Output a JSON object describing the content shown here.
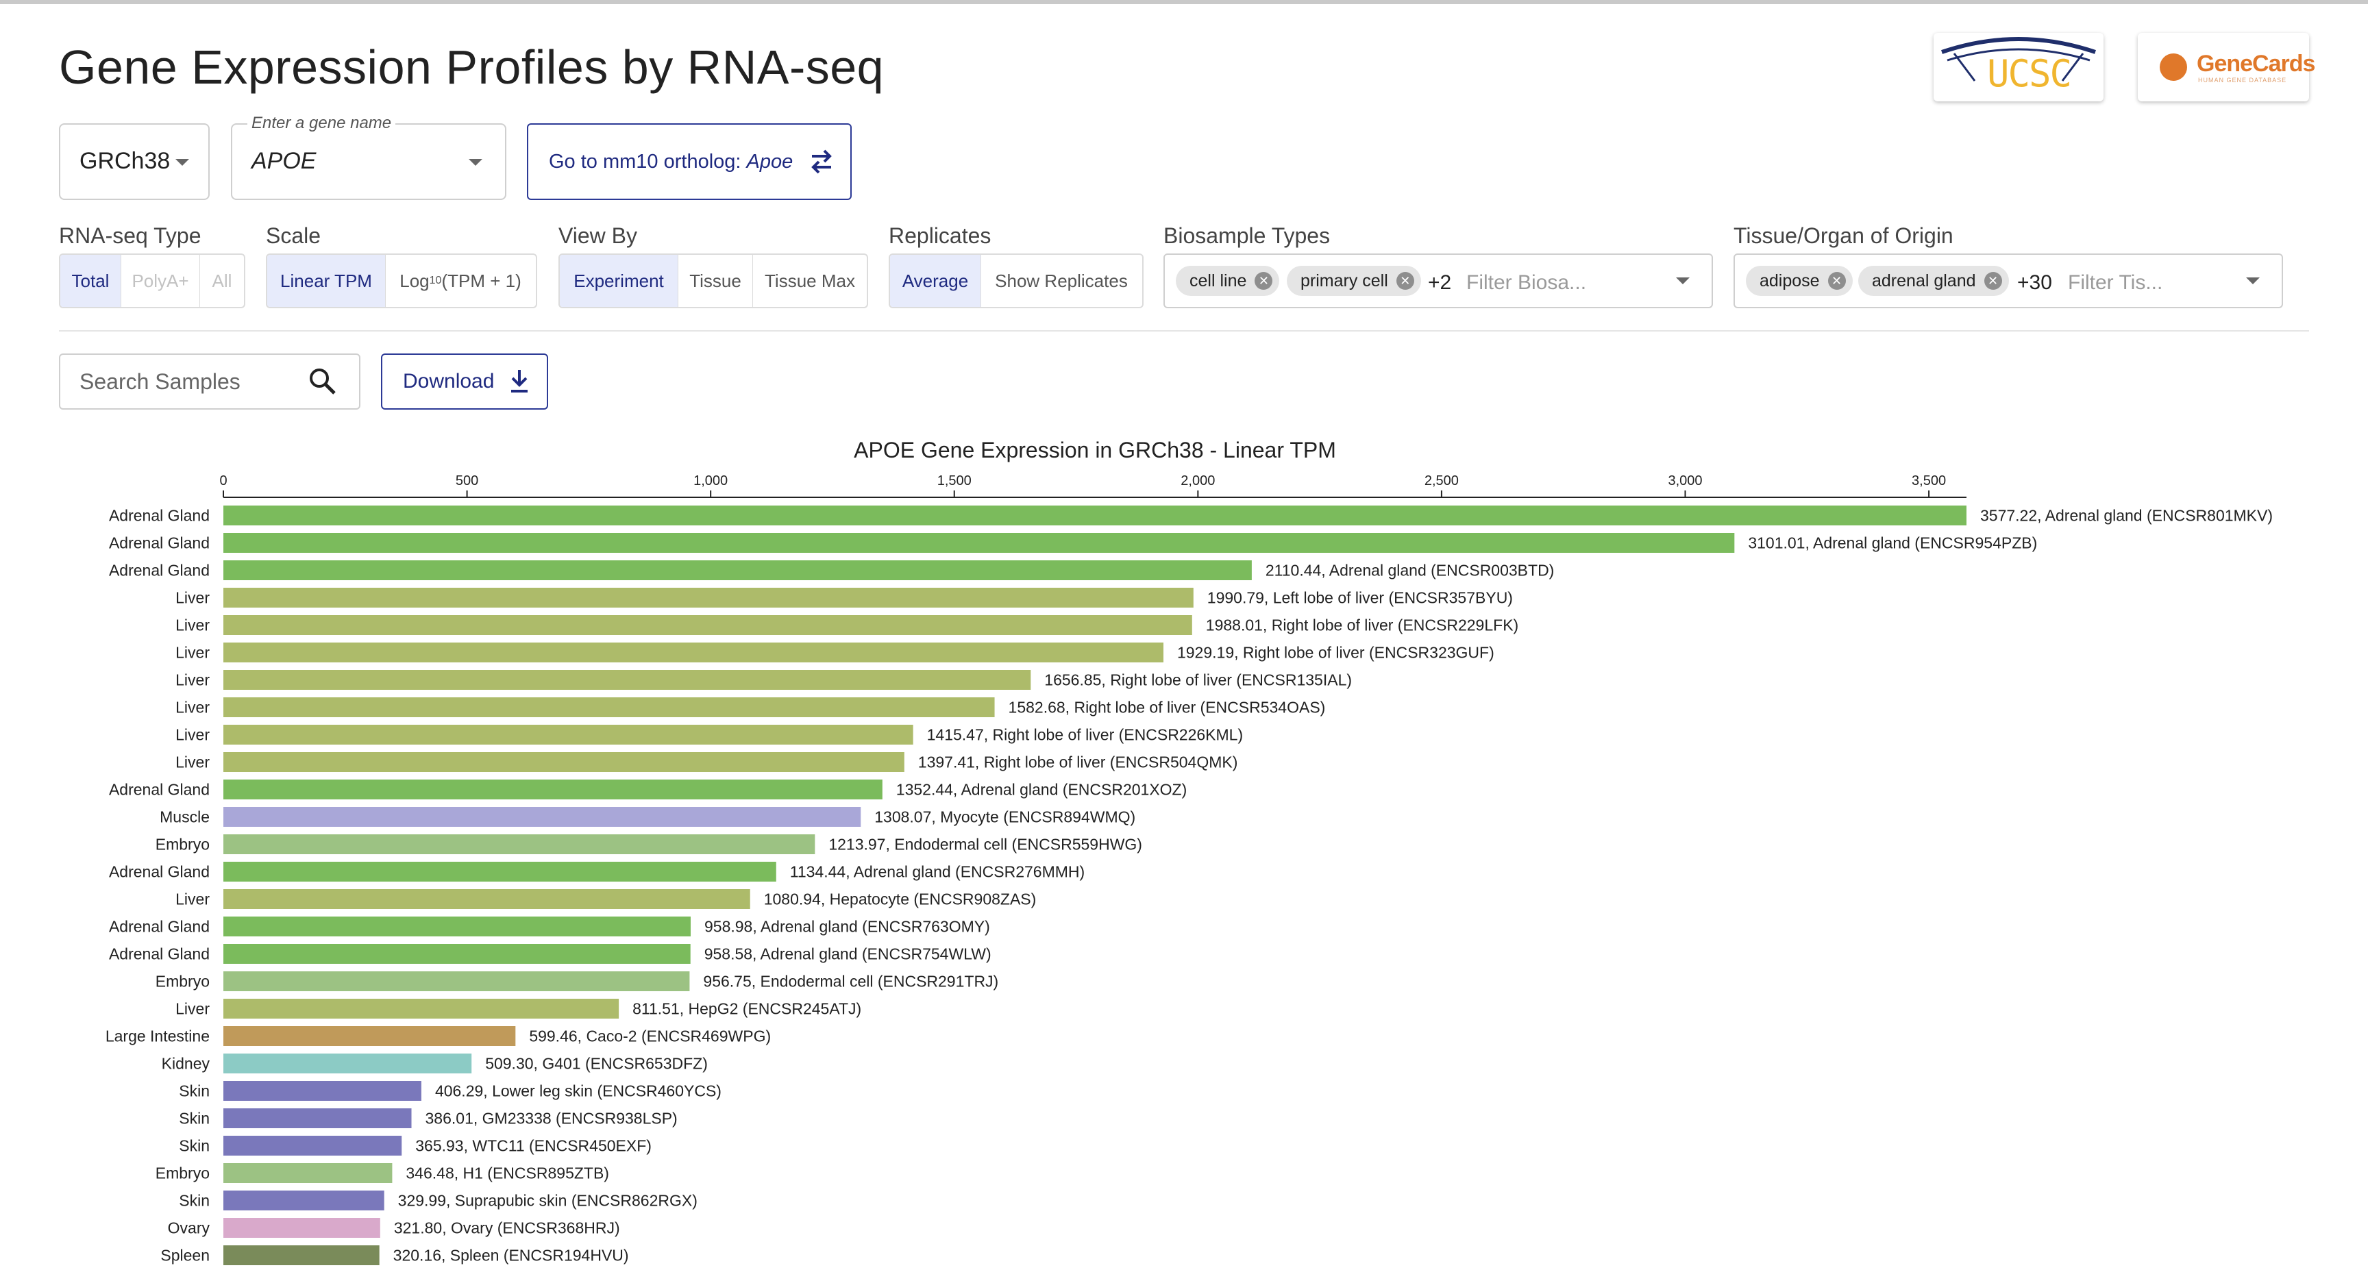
{
  "header": {
    "title": "Gene Expression Profiles by RNA-seq",
    "logos": {
      "ucsc": "UCSC",
      "genecards": "GeneCards",
      "genecards_sub": "HUMAN GENE DATABASE"
    }
  },
  "controls": {
    "assembly": {
      "value": "GRCh38"
    },
    "gene": {
      "label": "Enter a gene name",
      "value": "APOE"
    },
    "ortholog": {
      "prefix": "Go to mm10 ortholog: ",
      "gene": "Apoe"
    },
    "rnaseq_type": {
      "label": "RNA-seq Type",
      "options": [
        "Total",
        "PolyA+",
        "All"
      ],
      "selected": "Total"
    },
    "scale": {
      "label": "Scale",
      "options": [
        "Linear TPM",
        "Log10(TPM + 1)"
      ],
      "selected": "Linear TPM"
    },
    "view_by": {
      "label": "View By",
      "options": [
        "Experiment",
        "Tissue",
        "Tissue Max"
      ],
      "selected": "Experiment"
    },
    "replicates": {
      "label": "Replicates",
      "options": [
        "Average",
        "Show Replicates"
      ],
      "selected": "Average"
    },
    "biosample_types": {
      "label": "Biosample Types",
      "chips": [
        "cell line",
        "primary cell"
      ],
      "more": "+2",
      "placeholder": "Filter Biosa..."
    },
    "tissue_origin": {
      "label": "Tissue/Organ of Origin",
      "chips": [
        "adipose",
        "adrenal gland"
      ],
      "more": "+30",
      "placeholder": "Filter Tis..."
    },
    "search": {
      "placeholder": "Search Samples"
    },
    "download": {
      "label": "Download"
    }
  },
  "colors": {
    "accent": "#1f2a80",
    "Adrenal Gland": "#7bbb5c",
    "Liver": "#adbb6a",
    "Muscle": "#a9a7d8",
    "Embryo": "#9cc283",
    "Large Intestine": "#c09a5a",
    "Kidney": "#8ccbc5",
    "Skin": "#7a78bb",
    "Ovary": "#d9a9cb",
    "Spleen": "#7a8b5a"
  },
  "chart_data": {
    "type": "bar",
    "orientation": "horizontal",
    "title": "APOE Gene Expression in GRCh38 - Linear TPM",
    "xlim": [
      0,
      3577.22
    ],
    "xticks": [
      0,
      500,
      1000,
      1500,
      2000,
      2500,
      3000,
      3500
    ],
    "xtick_labels": [
      "0",
      "500",
      "1,000",
      "1,500",
      "2,000",
      "2,500",
      "3,000",
      "3,500"
    ],
    "rows": [
      {
        "tissue": "Adrenal Gland",
        "value": 3577.22,
        "label": "3577.22, Adrenal gland (ENCSR801MKV)"
      },
      {
        "tissue": "Adrenal Gland",
        "value": 3101.01,
        "label": "3101.01, Adrenal gland (ENCSR954PZB)"
      },
      {
        "tissue": "Adrenal Gland",
        "value": 2110.44,
        "label": "2110.44, Adrenal gland (ENCSR003BTD)"
      },
      {
        "tissue": "Liver",
        "value": 1990.79,
        "label": "1990.79, Left lobe of liver (ENCSR357BYU)"
      },
      {
        "tissue": "Liver",
        "value": 1988.01,
        "label": "1988.01, Right lobe of liver (ENCSR229LFK)"
      },
      {
        "tissue": "Liver",
        "value": 1929.19,
        "label": "1929.19, Right lobe of liver (ENCSR323GUF)"
      },
      {
        "tissue": "Liver",
        "value": 1656.85,
        "label": "1656.85, Right lobe of liver (ENCSR135IAL)"
      },
      {
        "tissue": "Liver",
        "value": 1582.68,
        "label": "1582.68, Right lobe of liver (ENCSR534OAS)"
      },
      {
        "tissue": "Liver",
        "value": 1415.47,
        "label": "1415.47, Right lobe of liver (ENCSR226KML)"
      },
      {
        "tissue": "Liver",
        "value": 1397.41,
        "label": "1397.41, Right lobe of liver (ENCSR504QMK)"
      },
      {
        "tissue": "Adrenal Gland",
        "value": 1352.44,
        "label": "1352.44, Adrenal gland (ENCSR201XOZ)"
      },
      {
        "tissue": "Muscle",
        "value": 1308.07,
        "label": "1308.07, Myocyte (ENCSR894WMQ)"
      },
      {
        "tissue": "Embryo",
        "value": 1213.97,
        "label": "1213.97, Endodermal cell (ENCSR559HWG)"
      },
      {
        "tissue": "Adrenal Gland",
        "value": 1134.44,
        "label": "1134.44, Adrenal gland (ENCSR276MMH)"
      },
      {
        "tissue": "Liver",
        "value": 1080.94,
        "label": "1080.94, Hepatocyte (ENCSR908ZAS)"
      },
      {
        "tissue": "Adrenal Gland",
        "value": 958.98,
        "label": "958.98, Adrenal gland (ENCSR763OMY)"
      },
      {
        "tissue": "Adrenal Gland",
        "value": 958.58,
        "label": "958.58, Adrenal gland (ENCSR754WLW)"
      },
      {
        "tissue": "Embryo",
        "value": 956.75,
        "label": "956.75, Endodermal cell (ENCSR291TRJ)"
      },
      {
        "tissue": "Liver",
        "value": 811.51,
        "label": "811.51, HepG2 (ENCSR245ATJ)"
      },
      {
        "tissue": "Large Intestine",
        "value": 599.46,
        "label": "599.46, Caco-2 (ENCSR469WPG)"
      },
      {
        "tissue": "Kidney",
        "value": 509.3,
        "label": "509.30, G401 (ENCSR653DFZ)"
      },
      {
        "tissue": "Skin",
        "value": 406.29,
        "label": "406.29, Lower leg skin (ENCSR460YCS)"
      },
      {
        "tissue": "Skin",
        "value": 386.01,
        "label": "386.01, GM23338 (ENCSR938LSP)"
      },
      {
        "tissue": "Skin",
        "value": 365.93,
        "label": "365.93, WTC11 (ENCSR450EXF)"
      },
      {
        "tissue": "Embryo",
        "value": 346.48,
        "label": "346.48, H1 (ENCSR895ZTB)"
      },
      {
        "tissue": "Skin",
        "value": 329.99,
        "label": "329.99, Suprapubic skin (ENCSR862RGX)"
      },
      {
        "tissue": "Ovary",
        "value": 321.8,
        "label": "321.80, Ovary (ENCSR368HRJ)"
      },
      {
        "tissue": "Spleen",
        "value": 320.16,
        "label": "320.16, Spleen (ENCSR194HVU)"
      }
    ]
  }
}
